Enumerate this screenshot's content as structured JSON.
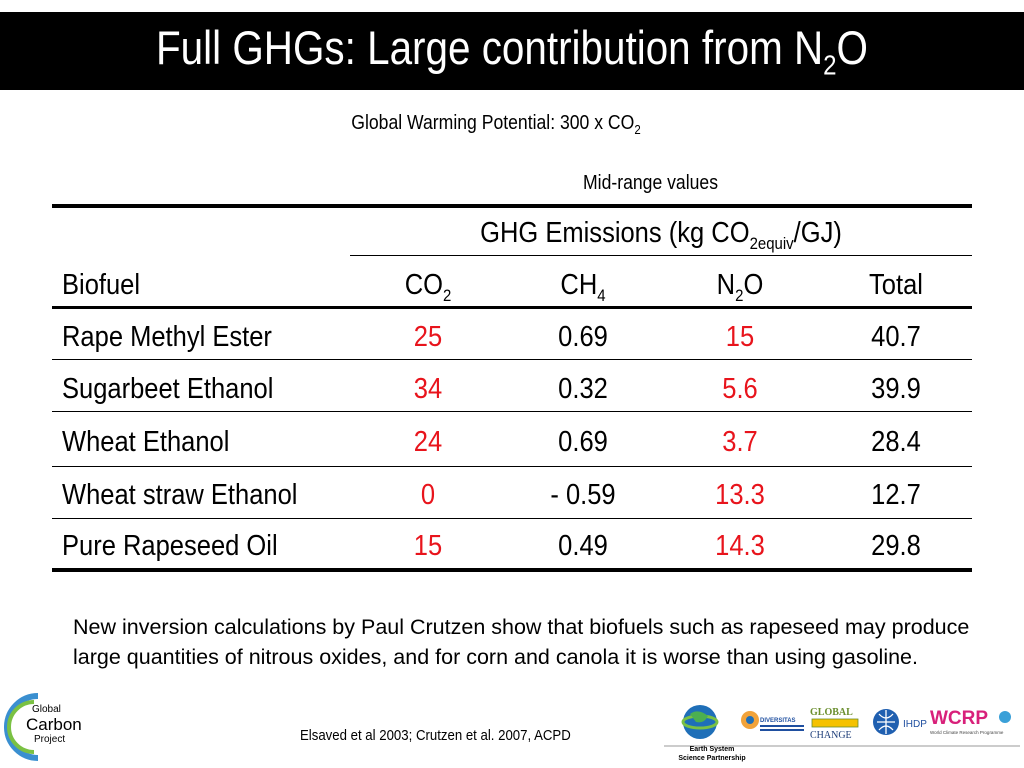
{
  "title": {
    "main": "Full GHGs: Large contribution from N",
    "sub": "2",
    "tail": "O"
  },
  "subtitle": {
    "main": "Global Warming Potential: 300 x CO",
    "sub": "2"
  },
  "midrange_label": "Mid-range values",
  "table": {
    "group_header": {
      "main": "GHG Emissions (kg CO",
      "sub": "2equiv",
      "tail": "/GJ)"
    },
    "columns": [
      {
        "main": "Biofuel"
      },
      {
        "main": "CO",
        "sub": "2"
      },
      {
        "main": "CH",
        "sub": "4"
      },
      {
        "main": "N",
        "sub": "2",
        "tail": "O"
      },
      {
        "main": "Total"
      }
    ],
    "rows": [
      {
        "biofuel": "Rape Methyl Ester",
        "co2": "25",
        "ch4": "0.69",
        "n2o": "15",
        "total": "40.7"
      },
      {
        "biofuel": "Sugarbeet Ethanol",
        "co2": "34",
        "ch4": "0.32",
        "n2o": "5.6",
        "total": "39.9"
      },
      {
        "biofuel": "Wheat Ethanol",
        "co2": "24",
        "ch4": "0.69",
        "n2o": "3.7",
        "total": "28.4"
      },
      {
        "biofuel": "Wheat straw Ethanol",
        "co2": "0",
        "ch4": "- 0.59",
        "n2o": "13.3",
        "total": "12.7"
      },
      {
        "biofuel": "Pure Rapeseed Oil",
        "co2": "15",
        "ch4": "0.49",
        "n2o": "14.3",
        "total": "29.8"
      }
    ],
    "highlight_color": "#e8141c"
  },
  "note": "New inversion calculations by Paul Crutzen show that biofuels such as rapeseed may produce large quantities of nitrous oxides, and for corn and canola it is worse than using gasoline.",
  "citation": "Elsaved et al 2003; Crutzen et al. 2007, ACPD",
  "logos": {
    "gcp": {
      "line1": "Global",
      "line2": "Carbon",
      "line3": "Project"
    },
    "essp": {
      "line1": "Earth System",
      "line2": "Science Partnership"
    },
    "diversitas": "DIVERSITAS",
    "igbp": {
      "line1": "GLOBAL",
      "line2": "CHANGE"
    },
    "ihdp": "IHDP",
    "wcrp": {
      "main": "WCRP",
      "sub": "World Climate Research Programme"
    }
  }
}
